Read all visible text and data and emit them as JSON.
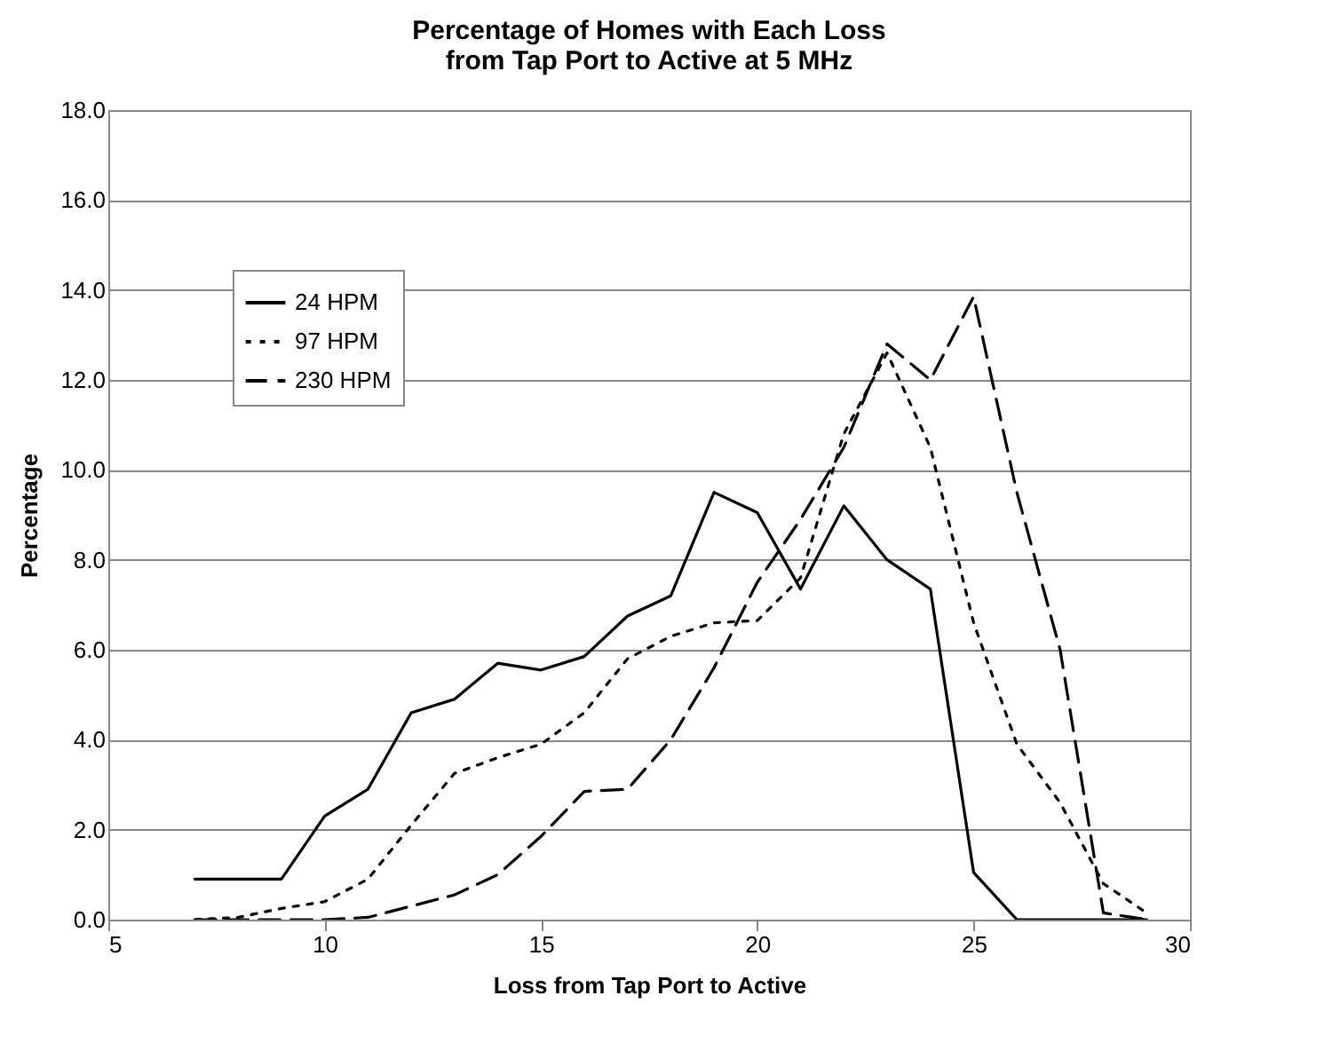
{
  "chart_data": {
    "type": "line",
    "title": [
      "Percentage of Homes with Each Loss",
      "from Tap Port to Active at 5 MHz"
    ],
    "xlabel": "Loss from Tap Port to Active",
    "ylabel": "Percentage",
    "x": [
      7,
      8,
      9,
      10,
      11,
      12,
      13,
      14,
      15,
      16,
      17,
      18,
      19,
      20,
      21,
      22,
      23,
      24,
      25,
      26,
      27,
      28,
      29
    ],
    "xlim": [
      5,
      30
    ],
    "xticks": [
      5,
      10,
      15,
      20,
      25,
      30
    ],
    "ylim": [
      0,
      18
    ],
    "yticks": [
      {
        "value": 0,
        "label": "0.0"
      },
      {
        "value": 2,
        "label": "2.0"
      },
      {
        "value": 4,
        "label": "4.0"
      },
      {
        "value": 6,
        "label": "6.0"
      },
      {
        "value": 8,
        "label": "8.0"
      },
      {
        "value": 10,
        "label": "10.0"
      },
      {
        "value": 12,
        "label": "12.0"
      },
      {
        "value": 14,
        "label": "14.0"
      },
      {
        "value": 16,
        "label": "16.0"
      },
      {
        "value": 18,
        "label": "18.0"
      }
    ],
    "grid": "y",
    "legend": "top left",
    "marker": "none",
    "series": [
      {
        "name": "24 HPM",
        "color": "#000000",
        "line_style": "solid",
        "values": [
          0.9,
          0.9,
          0.9,
          2.3,
          2.9,
          4.6,
          4.9,
          5.7,
          5.55,
          5.85,
          6.75,
          7.2,
          9.5,
          9.05,
          7.35,
          9.2,
          8.0,
          7.35,
          1.05,
          0,
          0,
          0,
          0
        ]
      },
      {
        "name": "97 HPM",
        "color": "#000000",
        "line_style": "dotted",
        "values": [
          0,
          0.05,
          0.25,
          0.4,
          0.9,
          2.1,
          3.25,
          3.6,
          3.9,
          4.6,
          5.8,
          6.3,
          6.6,
          6.65,
          7.6,
          10.8,
          12.6,
          10.5,
          6.6,
          3.9,
          2.6,
          0.8,
          0.15
        ]
      },
      {
        "name": "230 HPM",
        "color": "#000000",
        "line_style": "dashed",
        "values": [
          0,
          0,
          0,
          0,
          0.05,
          0.3,
          0.55,
          1.0,
          1.85,
          2.85,
          2.9,
          4.0,
          5.6,
          7.5,
          8.9,
          10.5,
          12.8,
          12.0,
          13.85,
          9.5,
          6.0,
          0.15,
          0
        ]
      }
    ]
  }
}
